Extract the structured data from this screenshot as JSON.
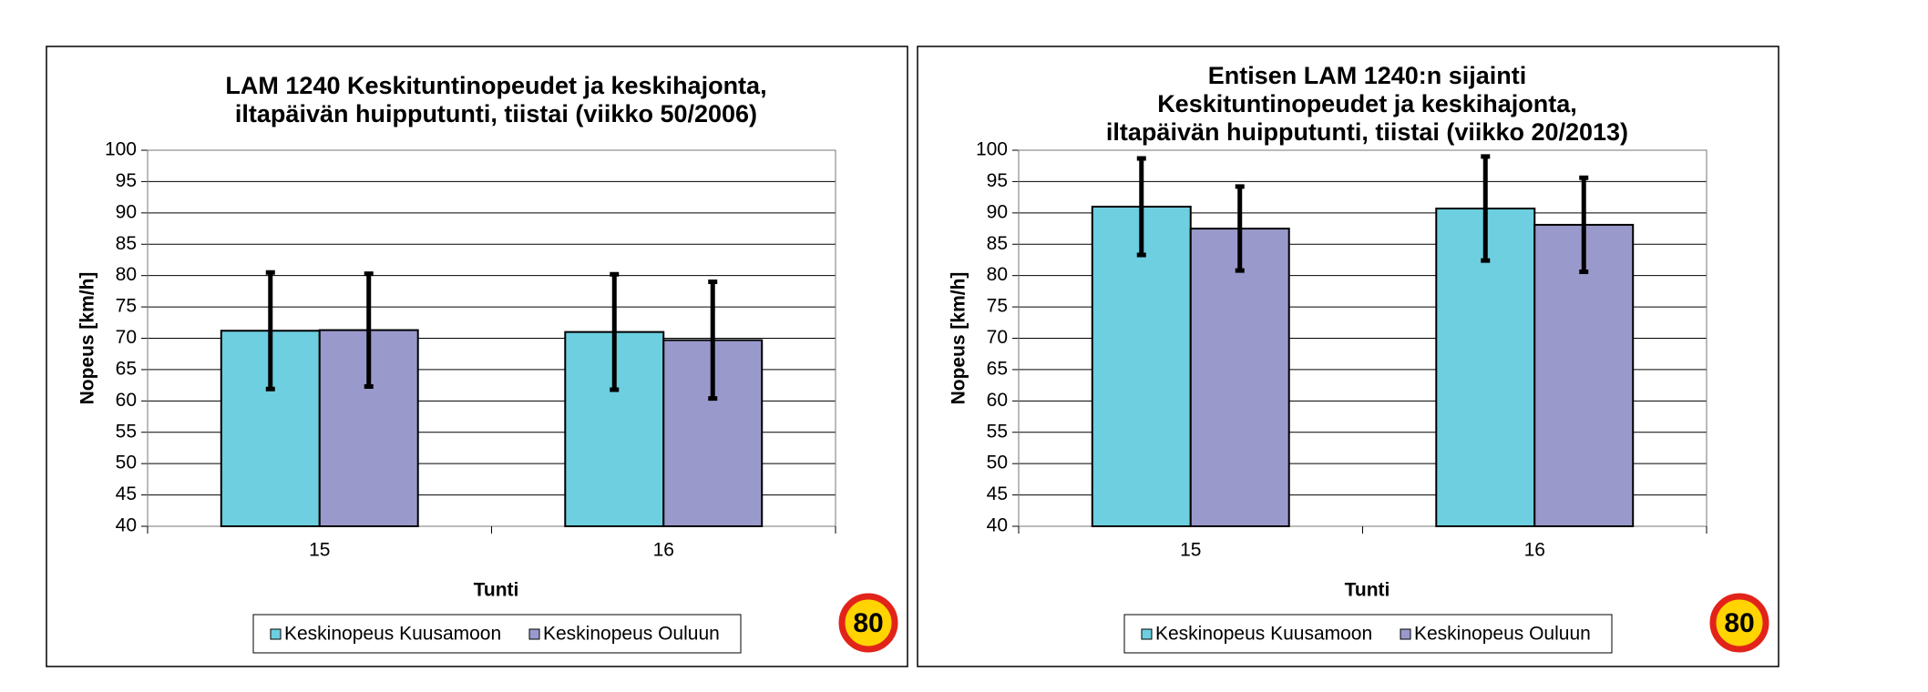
{
  "chart_data": [
    {
      "type": "bar",
      "title": [
        "LAM 1240 Keskituntinopeudet ja keskihajonta,",
        "iltapäivän huipputunti, tiistai (viikko 50/2006)"
      ],
      "x_label": "Tunti",
      "y_label": "Nopeus [km/h]",
      "categories": [
        "15",
        "16"
      ],
      "series": [
        {
          "name": "Keskinopeus Kuusamoon",
          "color": "#6dcfe0",
          "values": [
            71.2,
            71.0
          ],
          "errors": [
            9.3,
            9.2
          ]
        },
        {
          "name": "Keskinopeus Ouluun",
          "color": "#9999cc",
          "values": [
            71.3,
            69.7
          ],
          "errors": [
            9.0,
            9.3
          ]
        }
      ],
      "ylim": [
        40,
        100
      ],
      "yticks": [
        40,
        45,
        50,
        55,
        60,
        65,
        70,
        75,
        80,
        85,
        90,
        95,
        100
      ],
      "grid": true,
      "legend": "bottom",
      "sign": "80"
    },
    {
      "type": "bar",
      "title": [
        "Entisen LAM 1240:n  sijainti",
        "Keskituntinopeudet ja keskihajonta,",
        "iltapäivän huipputunti, tiistai (viikko 20/2013)"
      ],
      "x_label": "Tunti",
      "y_label": "Nopeus [km/h]",
      "categories": [
        "15",
        "16"
      ],
      "series": [
        {
          "name": "Keskinopeus Kuusamoon",
          "color": "#6dcfe0",
          "values": [
            91.0,
            90.7
          ],
          "errors": [
            7.7,
            8.3
          ]
        },
        {
          "name": "Keskinopeus Ouluun",
          "color": "#9999cc",
          "values": [
            87.5,
            88.1
          ],
          "errors": [
            6.7,
            7.5
          ]
        }
      ],
      "ylim": [
        40,
        100
      ],
      "yticks": [
        40,
        45,
        50,
        55,
        60,
        65,
        70,
        75,
        80,
        85,
        90,
        95,
        100
      ],
      "grid": true,
      "legend": "bottom",
      "sign": "80"
    }
  ]
}
